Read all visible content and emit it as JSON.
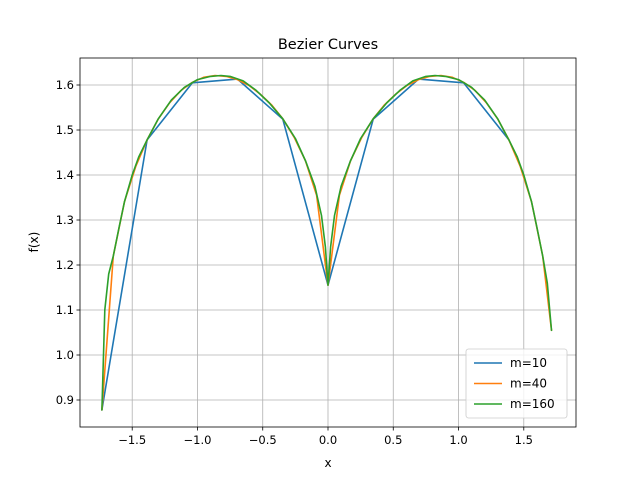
{
  "chart_data": {
    "type": "line",
    "title": "Bezier Curves",
    "xlabel": "x",
    "ylabel": "f(x)",
    "xlim": [
      -1.9,
      1.9
    ],
    "ylim": [
      0.84,
      1.66
    ],
    "x_ticks": [
      {
        "value": -1.5,
        "label": "−1.5"
      },
      {
        "value": -1.0,
        "label": "−1.0"
      },
      {
        "value": -0.5,
        "label": "−0.5"
      },
      {
        "value": 0.0,
        "label": "0.0"
      },
      {
        "value": 0.5,
        "label": "0.5"
      },
      {
        "value": 1.0,
        "label": "1.0"
      },
      {
        "value": 1.5,
        "label": "1.5"
      }
    ],
    "y_ticks": [
      {
        "value": 0.9,
        "label": "0.9"
      },
      {
        "value": 1.0,
        "label": "1.0"
      },
      {
        "value": 1.1,
        "label": "1.1"
      },
      {
        "value": 1.2,
        "label": "1.2"
      },
      {
        "value": 1.3,
        "label": "1.3"
      },
      {
        "value": 1.4,
        "label": "1.4"
      },
      {
        "value": 1.5,
        "label": "1.5"
      },
      {
        "value": 1.6,
        "label": "1.6"
      }
    ],
    "grid": true,
    "legend_position": "lower-right",
    "series": [
      {
        "name": "m=10",
        "color": "#1f77b4",
        "x": [
          -1.732,
          -1.386,
          -1.039,
          -0.693,
          -0.346,
          0.0,
          0.346,
          0.693,
          1.039,
          1.386
        ],
        "y": [
          0.878,
          1.478,
          1.605,
          1.613,
          1.524,
          1.155,
          1.524,
          1.613,
          1.605,
          1.478
        ]
      },
      {
        "name": "m=40",
        "color": "#ff7f0e",
        "x": [
          -1.732,
          -1.645,
          -1.559,
          -1.472,
          -1.386,
          -1.299,
          -1.212,
          -1.126,
          -1.039,
          -0.953,
          -0.866,
          -0.779,
          -0.693,
          -0.606,
          -0.52,
          -0.433,
          -0.346,
          -0.26,
          -0.173,
          -0.087,
          0.0,
          0.087,
          0.173,
          0.26,
          0.346,
          0.433,
          0.52,
          0.606,
          0.693,
          0.779,
          0.866,
          0.953,
          1.039,
          1.126,
          1.212,
          1.299,
          1.386,
          1.472,
          1.559,
          1.645,
          1.712
        ],
        "y": [
          0.878,
          1.22,
          1.341,
          1.42,
          1.478,
          1.525,
          1.561,
          1.588,
          1.606,
          1.617,
          1.621,
          1.619,
          1.612,
          1.599,
          1.58,
          1.556,
          1.525,
          1.484,
          1.432,
          1.355,
          1.155,
          1.355,
          1.432,
          1.484,
          1.525,
          1.556,
          1.58,
          1.599,
          1.612,
          1.619,
          1.621,
          1.617,
          1.606,
          1.588,
          1.561,
          1.525,
          1.478,
          1.42,
          1.341,
          1.22,
          1.055
        ]
      },
      {
        "name": "m=160",
        "color": "#2ca02c",
        "x": [
          -1.732,
          -1.71,
          -1.68,
          -1.645,
          -1.6,
          -1.559,
          -1.5,
          -1.45,
          -1.386,
          -1.3,
          -1.2,
          -1.1,
          -1.0,
          -0.9,
          -0.82,
          -0.75,
          -0.65,
          -0.55,
          -0.45,
          -0.346,
          -0.25,
          -0.17,
          -0.1,
          -0.05,
          -0.02,
          0.0,
          0.02,
          0.05,
          0.1,
          0.17,
          0.25,
          0.346,
          0.45,
          0.55,
          0.65,
          0.75,
          0.82,
          0.9,
          1.0,
          1.1,
          1.2,
          1.3,
          1.386,
          1.45,
          1.5,
          1.559,
          1.6,
          1.645,
          1.68,
          1.712
        ],
        "y": [
          0.878,
          1.1,
          1.18,
          1.22,
          1.285,
          1.341,
          1.4,
          1.44,
          1.478,
          1.525,
          1.567,
          1.595,
          1.612,
          1.619,
          1.621,
          1.619,
          1.609,
          1.588,
          1.56,
          1.525,
          1.481,
          1.43,
          1.375,
          1.31,
          1.24,
          1.155,
          1.24,
          1.31,
          1.375,
          1.43,
          1.481,
          1.525,
          1.56,
          1.588,
          1.609,
          1.619,
          1.621,
          1.619,
          1.612,
          1.595,
          1.567,
          1.525,
          1.478,
          1.44,
          1.4,
          1.341,
          1.285,
          1.22,
          1.16,
          1.055
        ]
      }
    ]
  }
}
